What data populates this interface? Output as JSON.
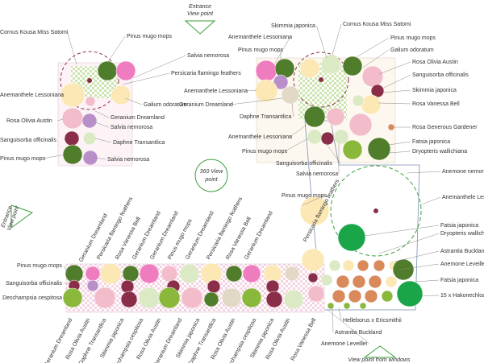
{
  "viewpoints": [
    {
      "lines": [
        "Entrance",
        "View point"
      ]
    },
    {
      "lines": [
        "Entrance",
        "View point"
      ]
    },
    {
      "lines": [
        "360 View",
        "point"
      ]
    },
    {
      "lines": [
        "View point from windows"
      ]
    }
  ],
  "labels": [
    "Cornus Kousa Miss Satomi",
    "Pinus mugo mops",
    "Salvia nemorosa",
    "Persicaria flamingo feathers",
    "Anemanthele Lessoniana",
    "Galium odoratum",
    "Geranium Dreamland",
    "Rosa Olivia Austin",
    "Salvia nemorosa",
    "Sanguisorba officinalis",
    "Daphne Transantlica",
    "Pinus mugo mops",
    "Salvia nemorosa",
    "Skimmia japonica",
    "Cornus Kousa Miss Satomi",
    "Anemanthele Lessoniana",
    "Pinus mugo mops",
    "Pinus mugo mops",
    "Galium odoratum",
    "Rosa Olivia Austin",
    "Sanguisorba officinalis",
    "Anemanthele Lessoniana",
    "Skimmia japonica",
    "Geranium Dreamland",
    "Rosa Vanessa Bell",
    "Daphne Transantlica",
    "Rosa Generous Gardener",
    "Anemanthele Lessoniana",
    "Fatsia japonica",
    "Dryopteris wallichiana",
    "Pinus mugo mops",
    "Sanguisorba officinalis",
    "Salvia nemorosa",
    "Anemone nemorosa",
    "Anemanthele Lessoniana",
    "Pinus mugo mops",
    "Fatsia japonica",
    "Dryopteris wallichiana",
    "Astrantia Buckland",
    "Anemone Leveillei",
    "Fatsia japonica",
    "15 x Hakonechloa",
    "Pinus mugo mops",
    "Sanguisorba officinalis",
    "Deschampsia cespitosa",
    "Geranium Dreamland",
    "Persicaria flamingo feathers",
    "Rosa Vanessa Bell",
    "Geranium Dreamland",
    "Geranium Dreamland",
    "Pinus mugo mops",
    "Geranium Dreamland",
    "Persicaria flamingo feathers",
    "Rosa Vanessa Bell",
    "Geranium Dreamland",
    "Persicaria flamingo feathers",
    "Geranium Dreamland",
    "Rosa Olivia Austin",
    "Daphne Transantlica",
    "Skimmia japonica",
    "Deschampsia cespitosa",
    "Rosa Olivia Austin",
    "Geranium Dreamland",
    "Skimmia japonica",
    "Daphne Transantlica",
    "Rosa Olivia Austin",
    "Deschampsia cespitosa",
    "Skimmia japonica",
    "Rosa Olivia Austin",
    "Rosa Vanessa Bell",
    "Helleborus x Ericsmithii",
    "Astrantia Buckland",
    "Anemone Leveillei"
  ]
}
